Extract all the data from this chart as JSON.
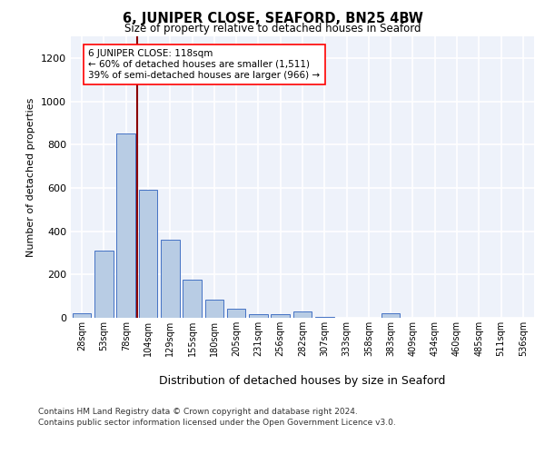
{
  "title1": "6, JUNIPER CLOSE, SEAFORD, BN25 4BW",
  "title2": "Size of property relative to detached houses in Seaford",
  "xlabel": "Distribution of detached houses by size in Seaford",
  "ylabel": "Number of detached properties",
  "categories": [
    "28sqm",
    "53sqm",
    "78sqm",
    "104sqm",
    "129sqm",
    "155sqm",
    "180sqm",
    "205sqm",
    "231sqm",
    "256sqm",
    "282sqm",
    "307sqm",
    "333sqm",
    "358sqm",
    "383sqm",
    "409sqm",
    "434sqm",
    "460sqm",
    "485sqm",
    "511sqm",
    "536sqm"
  ],
  "values": [
    20,
    310,
    850,
    590,
    360,
    175,
    85,
    40,
    15,
    15,
    30,
    5,
    0,
    0,
    20,
    0,
    0,
    0,
    0,
    0,
    0
  ],
  "bar_color": "#b8cce4",
  "bar_edge_color": "#4472c4",
  "marker_line_bin": 2,
  "annotation_text": "6 JUNIPER CLOSE: 118sqm\n← 60% of detached houses are smaller (1,511)\n39% of semi-detached houses are larger (966) →",
  "ylim": [
    0,
    1300
  ],
  "yticks": [
    0,
    200,
    400,
    600,
    800,
    1000,
    1200
  ],
  "background_color": "#eef2fa",
  "grid_color": "#ffffff",
  "footer1": "Contains HM Land Registry data © Crown copyright and database right 2024.",
  "footer2": "Contains public sector information licensed under the Open Government Licence v3.0."
}
